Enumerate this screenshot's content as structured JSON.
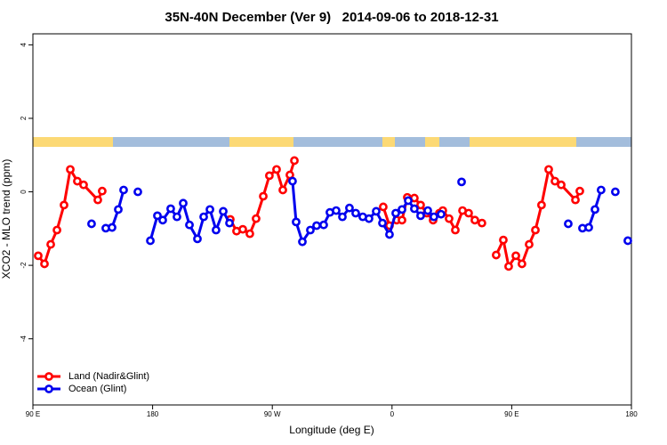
{
  "chart_data": {
    "type": "line",
    "title": "35N-40N December (Ver 9)   2014-09-06 to 2018-12-31",
    "x_label": "Longitude (deg E)",
    "y_label": "XCO2 - MLO trend (ppm)",
    "xlim": [
      90,
      540
    ],
    "ylim": [
      -5.8,
      4.3
    ],
    "xticks": [
      {
        "value": 90,
        "label": "90 E"
      },
      180,
      {
        "value": 270,
        "label": "90 W"
      },
      {
        "value": 360,
        "label": "0"
      },
      {
        "value": 450,
        "label": "90 E"
      },
      {
        "value": 540,
        "label": "180"
      }
    ],
    "yticks": [
      4,
      2,
      0,
      -2,
      -4
    ],
    "legend": "bottom-left",
    "series": [
      {
        "name": "Land (Nadir&Glint)",
        "color": "#ff0000",
        "x": [
          94.0,
          98.7,
          103.4,
          108.1,
          113.4,
          118.1,
          123.4,
          128.1,
          138.8,
          142.1,
          null,
          238.4,
          243.1,
          247.8,
          253.1,
          257.8,
          263.2,
          267.8,
          273.2,
          277.9,
          283.2,
          286.6,
          null,
          353.4,
          358.1,
          363.5,
          367.5,
          371.5,
          376.8,
          381.5,
          386.2,
          390.9,
          395.6,
          398.2,
          402.9,
          407.6,
          413.0,
          417.6,
          422.3,
          427.6,
          null,
          438.3,
          443.7,
          447.7,
          453.1,
          457.7,
          463.1,
          467.8,
          472.4,
          477.8,
          482.5,
          487.2,
          497.9,
          501.2
        ],
        "values": [
          -1.74,
          -1.96,
          -1.43,
          -1.04,
          -0.36,
          0.61,
          0.29,
          0.19,
          -0.22,
          0.02,
          null,
          -0.75,
          -1.07,
          -1.02,
          -1.14,
          -0.73,
          -0.12,
          0.44,
          0.61,
          0.05,
          0.46,
          0.85,
          null,
          -0.41,
          -0.92,
          -0.77,
          -0.77,
          -0.15,
          -0.17,
          -0.36,
          -0.58,
          -0.77,
          -0.58,
          -0.51,
          -0.73,
          -1.04,
          -0.51,
          -0.58,
          -0.77,
          -0.85,
          null,
          -1.72,
          -1.31,
          -2.03,
          -1.74,
          -1.96,
          -1.43,
          -1.04,
          -0.36,
          0.61,
          0.29,
          0.19,
          -0.22,
          0.02
        ]
      },
      {
        "name": "Ocean (Glint)",
        "color": "#0000ee",
        "x": [
          134.1,
          null,
          144.8,
          149.5,
          154.2,
          158.2,
          null,
          168.9,
          null,
          178.3,
          183.6,
          187.6,
          193.6,
          198.3,
          203.0,
          207.7,
          213.7,
          218.4,
          223.1,
          227.7,
          233.1,
          237.8,
          null,
          285.2,
          287.9,
          292.6,
          298.6,
          303.3,
          308.6,
          313.3,
          318.0,
          322.7,
          328.0,
          332.7,
          338.0,
          342.7,
          348.1,
          352.8,
          358.1,
          362.8,
          367.5,
          372.2,
          376.8,
          381.5,
          386.9,
          391.5,
          396.9,
          null,
          412.3,
          null,
          492.5,
          null,
          503.2,
          507.9,
          512.6,
          517.2,
          null,
          527.9,
          null,
          537.3
        ],
        "values": [
          -0.87,
          null,
          -0.99,
          -0.97,
          -0.48,
          0.05,
          null,
          0.0,
          null,
          -1.33,
          -0.65,
          -0.77,
          -0.46,
          -0.68,
          -0.31,
          -0.9,
          -1.28,
          -0.68,
          -0.48,
          -1.04,
          -0.53,
          -0.85,
          null,
          0.29,
          -0.82,
          -1.36,
          -1.04,
          -0.92,
          -0.9,
          -0.56,
          -0.51,
          -0.68,
          -0.44,
          -0.58,
          -0.68,
          -0.73,
          -0.53,
          -0.85,
          -1.16,
          -0.58,
          -0.48,
          -0.24,
          -0.46,
          -0.65,
          -0.51,
          -0.68,
          -0.61,
          null,
          0.27,
          null,
          -0.87,
          null,
          -0.99,
          -0.97,
          -0.48,
          0.05,
          null,
          0.0,
          null,
          -1.33
        ]
      }
    ]
  }
}
